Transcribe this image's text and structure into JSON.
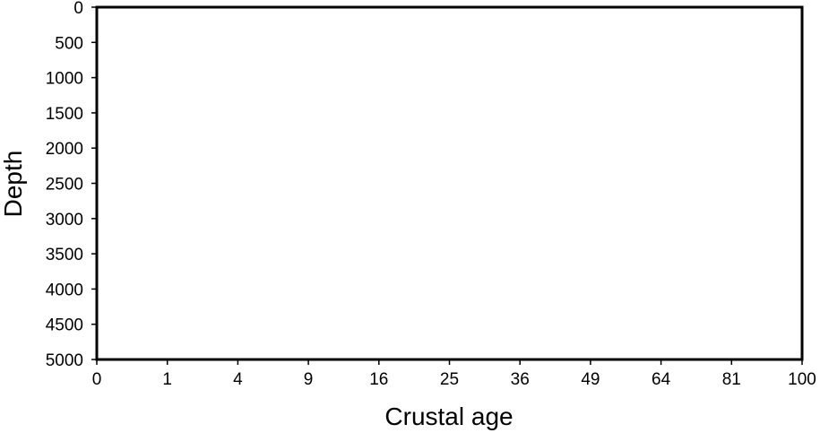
{
  "chart_data": {
    "type": "scatter",
    "title": "",
    "xlabel": "Crustal age",
    "ylabel": "Depth",
    "x_tick_labels": [
      "0",
      "1",
      "4",
      "9",
      "16",
      "25",
      "36",
      "49",
      "64",
      "81",
      "100"
    ],
    "y_tick_labels": [
      "0",
      "500",
      "1000",
      "1500",
      "2000",
      "2500",
      "3000",
      "3500",
      "4000",
      "4500",
      "5000"
    ],
    "xlim": [
      0,
      100
    ],
    "ylim": [
      0,
      5000
    ],
    "x_scale": "square-root",
    "y_axis_inverted": true,
    "grid": false,
    "series": []
  }
}
